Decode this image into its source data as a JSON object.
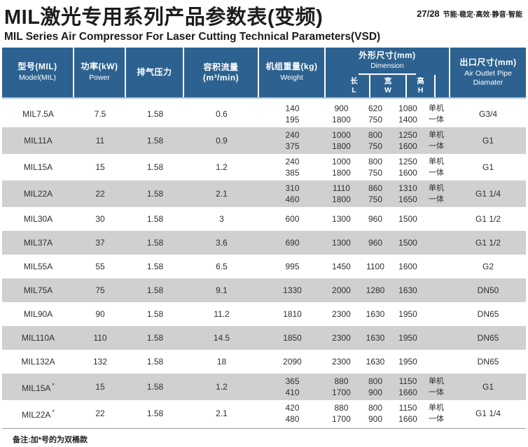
{
  "page": {
    "title_zh": "MIL激光专用系列产品参数表(变频)",
    "title_en": "MIL Series Air Compressor For Laser Cutting  Technical Parameters(VSD)",
    "page_number": "27/28",
    "tagline": "节能·稳定·高效·静音·智能",
    "note": "备注:加*号的为双桶款"
  },
  "colors": {
    "header_bg": "#2d6290",
    "header_divider": "#ffffff",
    "alt_row_bg": "#d0d0d0",
    "text": "#2f2f2f"
  },
  "table": {
    "headers": {
      "model_zh": "型号(MIL)",
      "model_en": "Model(MIL)",
      "power_zh": "功率(kW)",
      "power_en": "Power",
      "pressure_zh": "排气压力",
      "flow_zh": "容积流量 (m³/min)",
      "weight_zh": "机组重量(kg)",
      "weight_en": "Weight",
      "dimension_zh": "外形尺寸(mm)",
      "dimension_en": "Dimension",
      "dim_l_zh": "长",
      "dim_l_en": "L",
      "dim_w_zh": "宽",
      "dim_w_en": "W",
      "dim_h_zh": "高",
      "dim_h_en": "H",
      "outlet_zh": "出口尺寸(mm)",
      "outlet_en": "Air Outlet Pipe Diamater"
    },
    "unit_labels": {
      "single": "单机",
      "integrated": "一体"
    },
    "rows": [
      {
        "model": "MIL7.5A",
        "star": false,
        "power": "7.5",
        "pressure": "1.58",
        "flow": "0.6",
        "weight": [
          "140",
          "195"
        ],
        "dims": {
          "l": [
            "900",
            "1800"
          ],
          "w": [
            "620",
            "750"
          ],
          "h": [
            "1080",
            "1400"
          ],
          "unit": [
            "单机",
            "一体"
          ]
        },
        "outlet": "G3/4"
      },
      {
        "model": "MIL11A",
        "star": false,
        "power": "11",
        "pressure": "1.58",
        "flow": "0.9",
        "weight": [
          "240",
          "375"
        ],
        "dims": {
          "l": [
            "1000",
            "1800"
          ],
          "w": [
            "800",
            "750"
          ],
          "h": [
            "1250",
            "1600"
          ],
          "unit": [
            "单机",
            "一体"
          ]
        },
        "outlet": "G1"
      },
      {
        "model": "MIL15A",
        "star": false,
        "power": "15",
        "pressure": "1.58",
        "flow": "1.2",
        "weight": [
          "240",
          "385"
        ],
        "dims": {
          "l": [
            "1000",
            "1800"
          ],
          "w": [
            "800",
            "750"
          ],
          "h": [
            "1250",
            "1600"
          ],
          "unit": [
            "单机",
            "一体"
          ]
        },
        "outlet": "G1"
      },
      {
        "model": "MIL22A",
        "star": false,
        "power": "22",
        "pressure": "1.58",
        "flow": "2.1",
        "weight": [
          "310",
          "460"
        ],
        "dims": {
          "l": [
            "1110",
            "1800"
          ],
          "w": [
            "860",
            "750"
          ],
          "h": [
            "1310",
            "1650"
          ],
          "unit": [
            "单机",
            "一体"
          ]
        },
        "outlet": "G1 1/4"
      },
      {
        "model": "MIL30A",
        "star": false,
        "power": "30",
        "pressure": "1.58",
        "flow": "3",
        "weight": [
          "600"
        ],
        "dims": {
          "l": [
            "1300"
          ],
          "w": [
            "960"
          ],
          "h": [
            "1500"
          ],
          "unit": [
            ""
          ]
        },
        "outlet": "G1 1/2"
      },
      {
        "model": "MIL37A",
        "star": false,
        "power": "37",
        "pressure": "1.58",
        "flow": "3.6",
        "weight": [
          "690"
        ],
        "dims": {
          "l": [
            "1300"
          ],
          "w": [
            "960"
          ],
          "h": [
            "1500"
          ],
          "unit": [
            ""
          ]
        },
        "outlet": "G1 1/2"
      },
      {
        "model": "MIL55A",
        "star": false,
        "power": "55",
        "pressure": "1.58",
        "flow": "6.5",
        "weight": [
          "995"
        ],
        "dims": {
          "l": [
            "1450"
          ],
          "w": [
            "1100"
          ],
          "h": [
            "1600"
          ],
          "unit": [
            ""
          ]
        },
        "outlet": "G2"
      },
      {
        "model": "MIL75A",
        "star": false,
        "power": "75",
        "pressure": "1.58",
        "flow": "9.1",
        "weight": [
          "1330"
        ],
        "dims": {
          "l": [
            "2000"
          ],
          "w": [
            "1280"
          ],
          "h": [
            "1630"
          ],
          "unit": [
            ""
          ]
        },
        "outlet": "DN50"
      },
      {
        "model": "MIL90A",
        "star": false,
        "power": "90",
        "pressure": "1.58",
        "flow": "11.2",
        "weight": [
          "1810"
        ],
        "dims": {
          "l": [
            "2300"
          ],
          "w": [
            "1630"
          ],
          "h": [
            "1950"
          ],
          "unit": [
            ""
          ]
        },
        "outlet": "DN65"
      },
      {
        "model": "MIL110A",
        "star": false,
        "power": "110",
        "pressure": "1.58",
        "flow": "14.5",
        "weight": [
          "1850"
        ],
        "dims": {
          "l": [
            "2300"
          ],
          "w": [
            "1630"
          ],
          "h": [
            "1950"
          ],
          "unit": [
            ""
          ]
        },
        "outlet": "DN65"
      },
      {
        "model": "MIL132A",
        "star": false,
        "power": "132",
        "pressure": "1.58",
        "flow": "18",
        "weight": [
          "2090"
        ],
        "dims": {
          "l": [
            "2300"
          ],
          "w": [
            "1630"
          ],
          "h": [
            "1950"
          ],
          "unit": [
            ""
          ]
        },
        "outlet": "DN65"
      },
      {
        "model": "MIL15A",
        "star": true,
        "power": "15",
        "pressure": "1.58",
        "flow": "1.2",
        "weight": [
          "365",
          "410"
        ],
        "dims": {
          "l": [
            "880",
            "1700"
          ],
          "w": [
            "800",
            "900"
          ],
          "h": [
            "1150",
            "1660"
          ],
          "unit": [
            "单机",
            "一体"
          ]
        },
        "outlet": "G1"
      },
      {
        "model": "MIL22A",
        "star": true,
        "power": "22",
        "pressure": "1.58",
        "flow": "2.1",
        "weight": [
          "420",
          "480"
        ],
        "dims": {
          "l": [
            "880",
            "1700"
          ],
          "w": [
            "800",
            "900"
          ],
          "h": [
            "1150",
            "1660"
          ],
          "unit": [
            "单机",
            "一体"
          ]
        },
        "outlet": "G1 1/4"
      }
    ]
  }
}
